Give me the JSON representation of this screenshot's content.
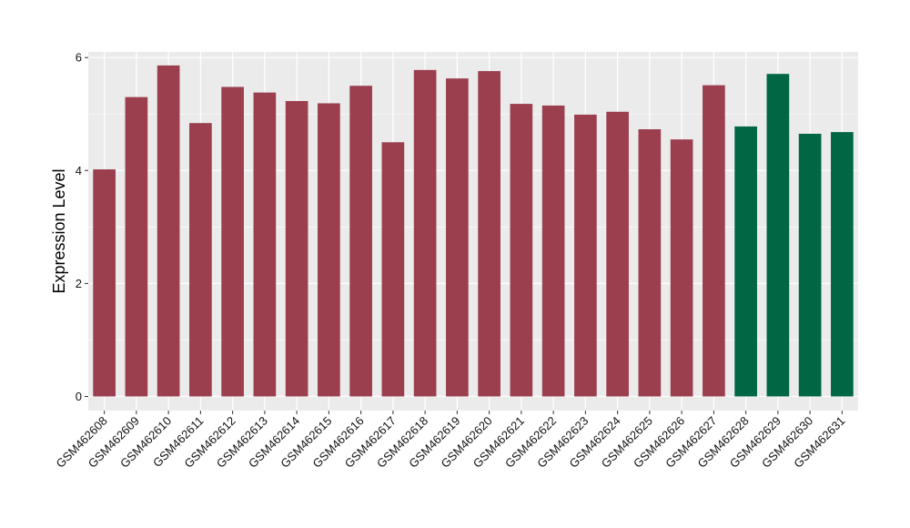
{
  "chart_data": {
    "type": "bar",
    "ylabel": "Expression Level",
    "xlabel": "",
    "ylim": [
      -0.25,
      6.1
    ],
    "yticks": [
      0,
      2,
      4,
      6
    ],
    "grid": true,
    "categories": [
      "GSM462608",
      "GSM462609",
      "GSM462610",
      "GSM462611",
      "GSM462612",
      "GSM462613",
      "GSM462614",
      "GSM462615",
      "GSM462616",
      "GSM462617",
      "GSM462618",
      "GSM462619",
      "GSM462620",
      "GSM462621",
      "GSM462622",
      "GSM462623",
      "GSM462624",
      "GSM462625",
      "GSM462626",
      "GSM462627",
      "GSM462628",
      "GSM462629",
      "GSM462630",
      "GSM462631"
    ],
    "values": [
      4.02,
      5.3,
      5.86,
      4.84,
      5.48,
      5.38,
      5.23,
      5.19,
      5.5,
      4.5,
      5.78,
      5.63,
      5.76,
      5.18,
      5.15,
      4.99,
      5.04,
      4.73,
      4.55,
      5.51,
      4.78,
      5.71,
      4.65,
      4.68
    ],
    "groups": [
      "a",
      "a",
      "a",
      "a",
      "a",
      "a",
      "a",
      "a",
      "a",
      "a",
      "a",
      "a",
      "a",
      "a",
      "a",
      "a",
      "a",
      "a",
      "a",
      "a",
      "b",
      "b",
      "b",
      "b"
    ],
    "group_colors": {
      "a": "#9b3f4f",
      "b": "#006644"
    },
    "panel_background": "#ebebeb",
    "gridline_color": "#ffffff"
  }
}
